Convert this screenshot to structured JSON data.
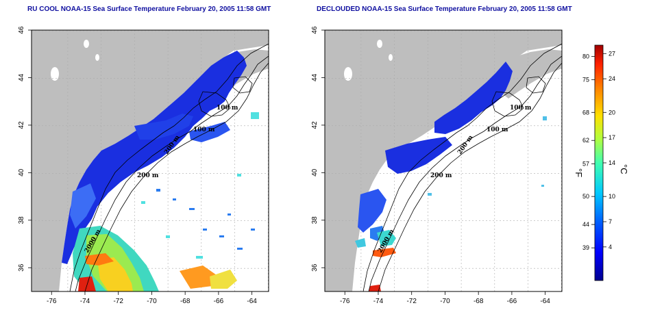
{
  "titles": {
    "left": "RU COOL NOAA-15 Sea Surface Temperature February 20, 2005 11:58 GMT",
    "right": "DECLOUDED NOAA-15 Sea Surface Temperature February 20, 2005 11:58 GMT"
  },
  "axes": {
    "lon_ticks": [
      "-76",
      "-74",
      "-72",
      "-70",
      "-68",
      "-66",
      "-64"
    ],
    "lat_ticks": [
      "46",
      "44",
      "42",
      "40",
      "38",
      "36"
    ],
    "lon_range": [
      -77.2,
      -63.0
    ],
    "lat_range": [
      35.0,
      46.0
    ]
  },
  "contour_labels": [
    "100 m",
    "100 m",
    "200 m",
    "200 m",
    "2000 m"
  ],
  "colorbar": {
    "fahrenheit_label": "°F",
    "celsius_label": "°C",
    "fahrenheit_ticks": [
      "80",
      "75",
      "68",
      "62",
      "57",
      "50",
      "44",
      "39"
    ],
    "celsius_ticks": [
      "27",
      "24",
      "20",
      "17",
      "14",
      "10",
      "7",
      "4"
    ],
    "celsius_range": [
      0,
      28
    ],
    "colors": [
      "#00008f",
      "#0000ff",
      "#0060ff",
      "#00c8ff",
      "#40ffb0",
      "#b0ff40",
      "#ffe000",
      "#ff8000",
      "#ff2000",
      "#a00000"
    ]
  },
  "colors": {
    "land": "#bebebe",
    "ocean_empty": "#ffffff",
    "cold_water": "#1a2fe0",
    "title": "#1010a0"
  }
}
